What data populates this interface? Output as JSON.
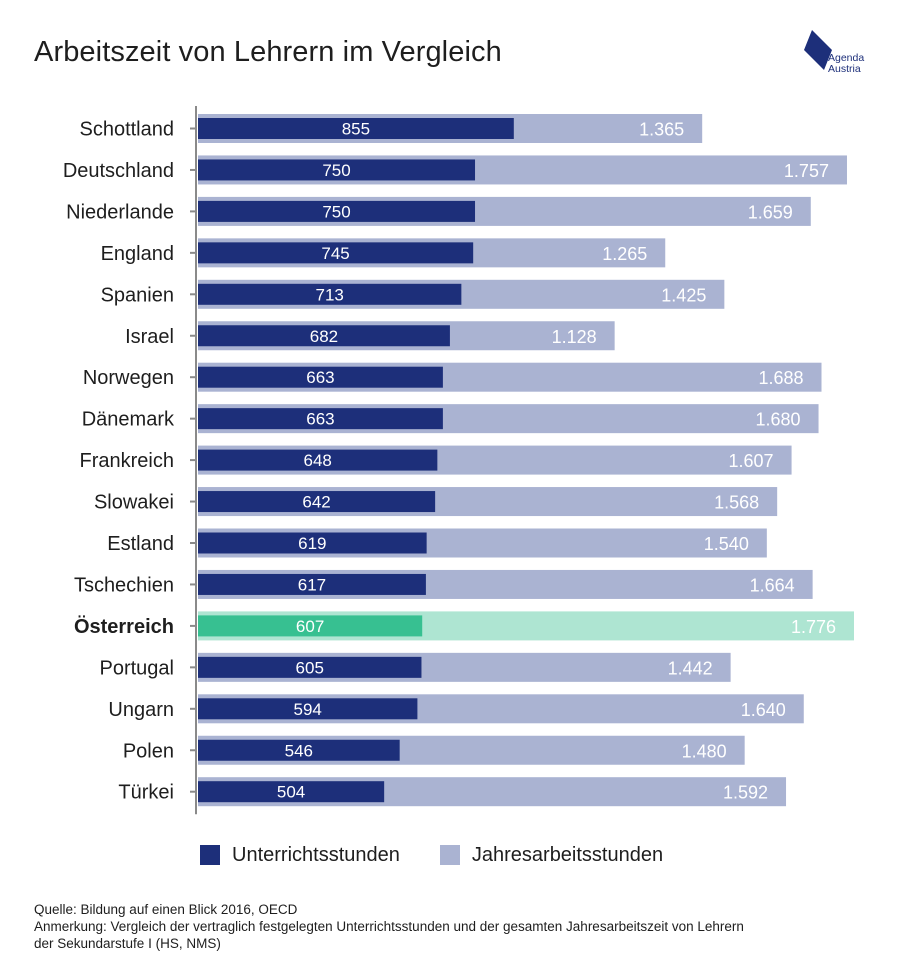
{
  "title": "Arbeitszeit von Lehrern im Vergleich",
  "logo": {
    "line1": "Agenda",
    "line2": "Austria"
  },
  "chart_data": {
    "type": "bar",
    "orientation": "horizontal",
    "title": "Arbeitszeit von Lehrern im Vergleich",
    "categories": [
      "Schottland",
      "Deutschland",
      "Niederlande",
      "England",
      "Spanien",
      "Israel",
      "Norwegen",
      "Dänemark",
      "Frankreich",
      "Slowakei",
      "Estland",
      "Tschechien",
      "Österreich",
      "Portugal",
      "Ungarn",
      "Polen",
      "Türkei"
    ],
    "highlight": "Österreich",
    "series": [
      {
        "name": "Unterrichtsstunden",
        "values": [
          855,
          750,
          750,
          745,
          713,
          682,
          663,
          663,
          648,
          642,
          619,
          617,
          607,
          605,
          594,
          546,
          504
        ],
        "labels": [
          "855",
          "750",
          "750",
          "745",
          "713",
          "682",
          "663",
          "663",
          "648",
          "642",
          "619",
          "617",
          "607",
          "605",
          "594",
          "546",
          "504"
        ]
      },
      {
        "name": "Jahresarbeitsstunden",
        "values": [
          1365,
          1757,
          1659,
          1265,
          1425,
          1128,
          1688,
          1680,
          1607,
          1568,
          1540,
          1664,
          1776,
          1442,
          1640,
          1480,
          1592
        ],
        "labels": [
          "1.365",
          "1.757",
          "1.659",
          "1.265",
          "1.425",
          "1.128",
          "1.688",
          "1.680",
          "1.607",
          "1.568",
          "1.540",
          "1.664",
          "1.776",
          "1.442",
          "1.640",
          "1.480",
          "1.592"
        ]
      }
    ],
    "xlim": [
      0,
      1776
    ],
    "xlabel": "",
    "ylabel": "",
    "grid": false,
    "legend_position": "bottom"
  },
  "colors": {
    "teaching": "#1d2f7a",
    "annual": "#aab3d2",
    "teaching_highlight": "#37c091",
    "annual_highlight": "#aee5d2",
    "axis": "#8a8a8a"
  },
  "legend": {
    "teaching_label": "Unterrichtsstunden",
    "annual_label": "Jahresarbeitsstunden"
  },
  "footer": {
    "source": "Quelle: Bildung auf einen Blick 2016, OECD",
    "note_line1": "Anmerkung: Vergleich der vertraglich festgelegten Unterrichtsstunden und der gesamten Jahresarbeitszeit von Lehrern",
    "note_line2": "der Sekundarstufe I (HS, NMS)"
  }
}
